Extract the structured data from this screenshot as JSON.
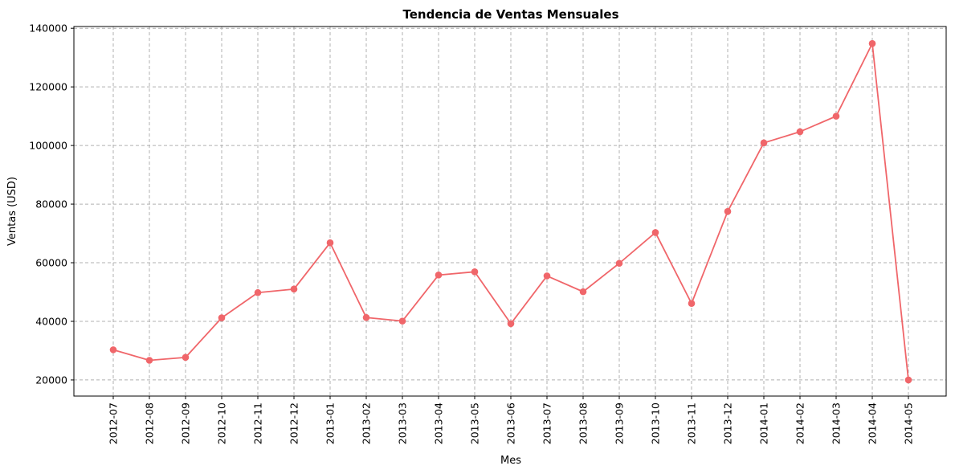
{
  "chart_data": {
    "type": "line",
    "title": "Tendencia de Ventas Mensuales",
    "xlabel": "Mes",
    "ylabel": "Ventas (USD)",
    "categories": [
      "2012-07",
      "2012-08",
      "2012-09",
      "2012-10",
      "2012-11",
      "2012-12",
      "2013-01",
      "2013-02",
      "2013-03",
      "2013-04",
      "2013-05",
      "2013-06",
      "2013-07",
      "2013-08",
      "2013-09",
      "2013-10",
      "2013-11",
      "2013-12",
      "2014-01",
      "2014-02",
      "2014-03",
      "2014-04",
      "2014-05"
    ],
    "series": [
      {
        "values": [
          30300,
          26700,
          27700,
          41200,
          49800,
          51000,
          66800,
          41300,
          40100,
          55800,
          56900,
          39200,
          55500,
          50100,
          59800,
          70300,
          46100,
          77500,
          100900,
          104700,
          110000,
          134800,
          20000
        ],
        "color": "#f0666a"
      }
    ],
    "ylim": [
      14500,
      140600
    ],
    "yticks": [
      20000,
      40000,
      60000,
      80000,
      100000,
      120000,
      140000
    ],
    "grid": true,
    "legend": false
  }
}
